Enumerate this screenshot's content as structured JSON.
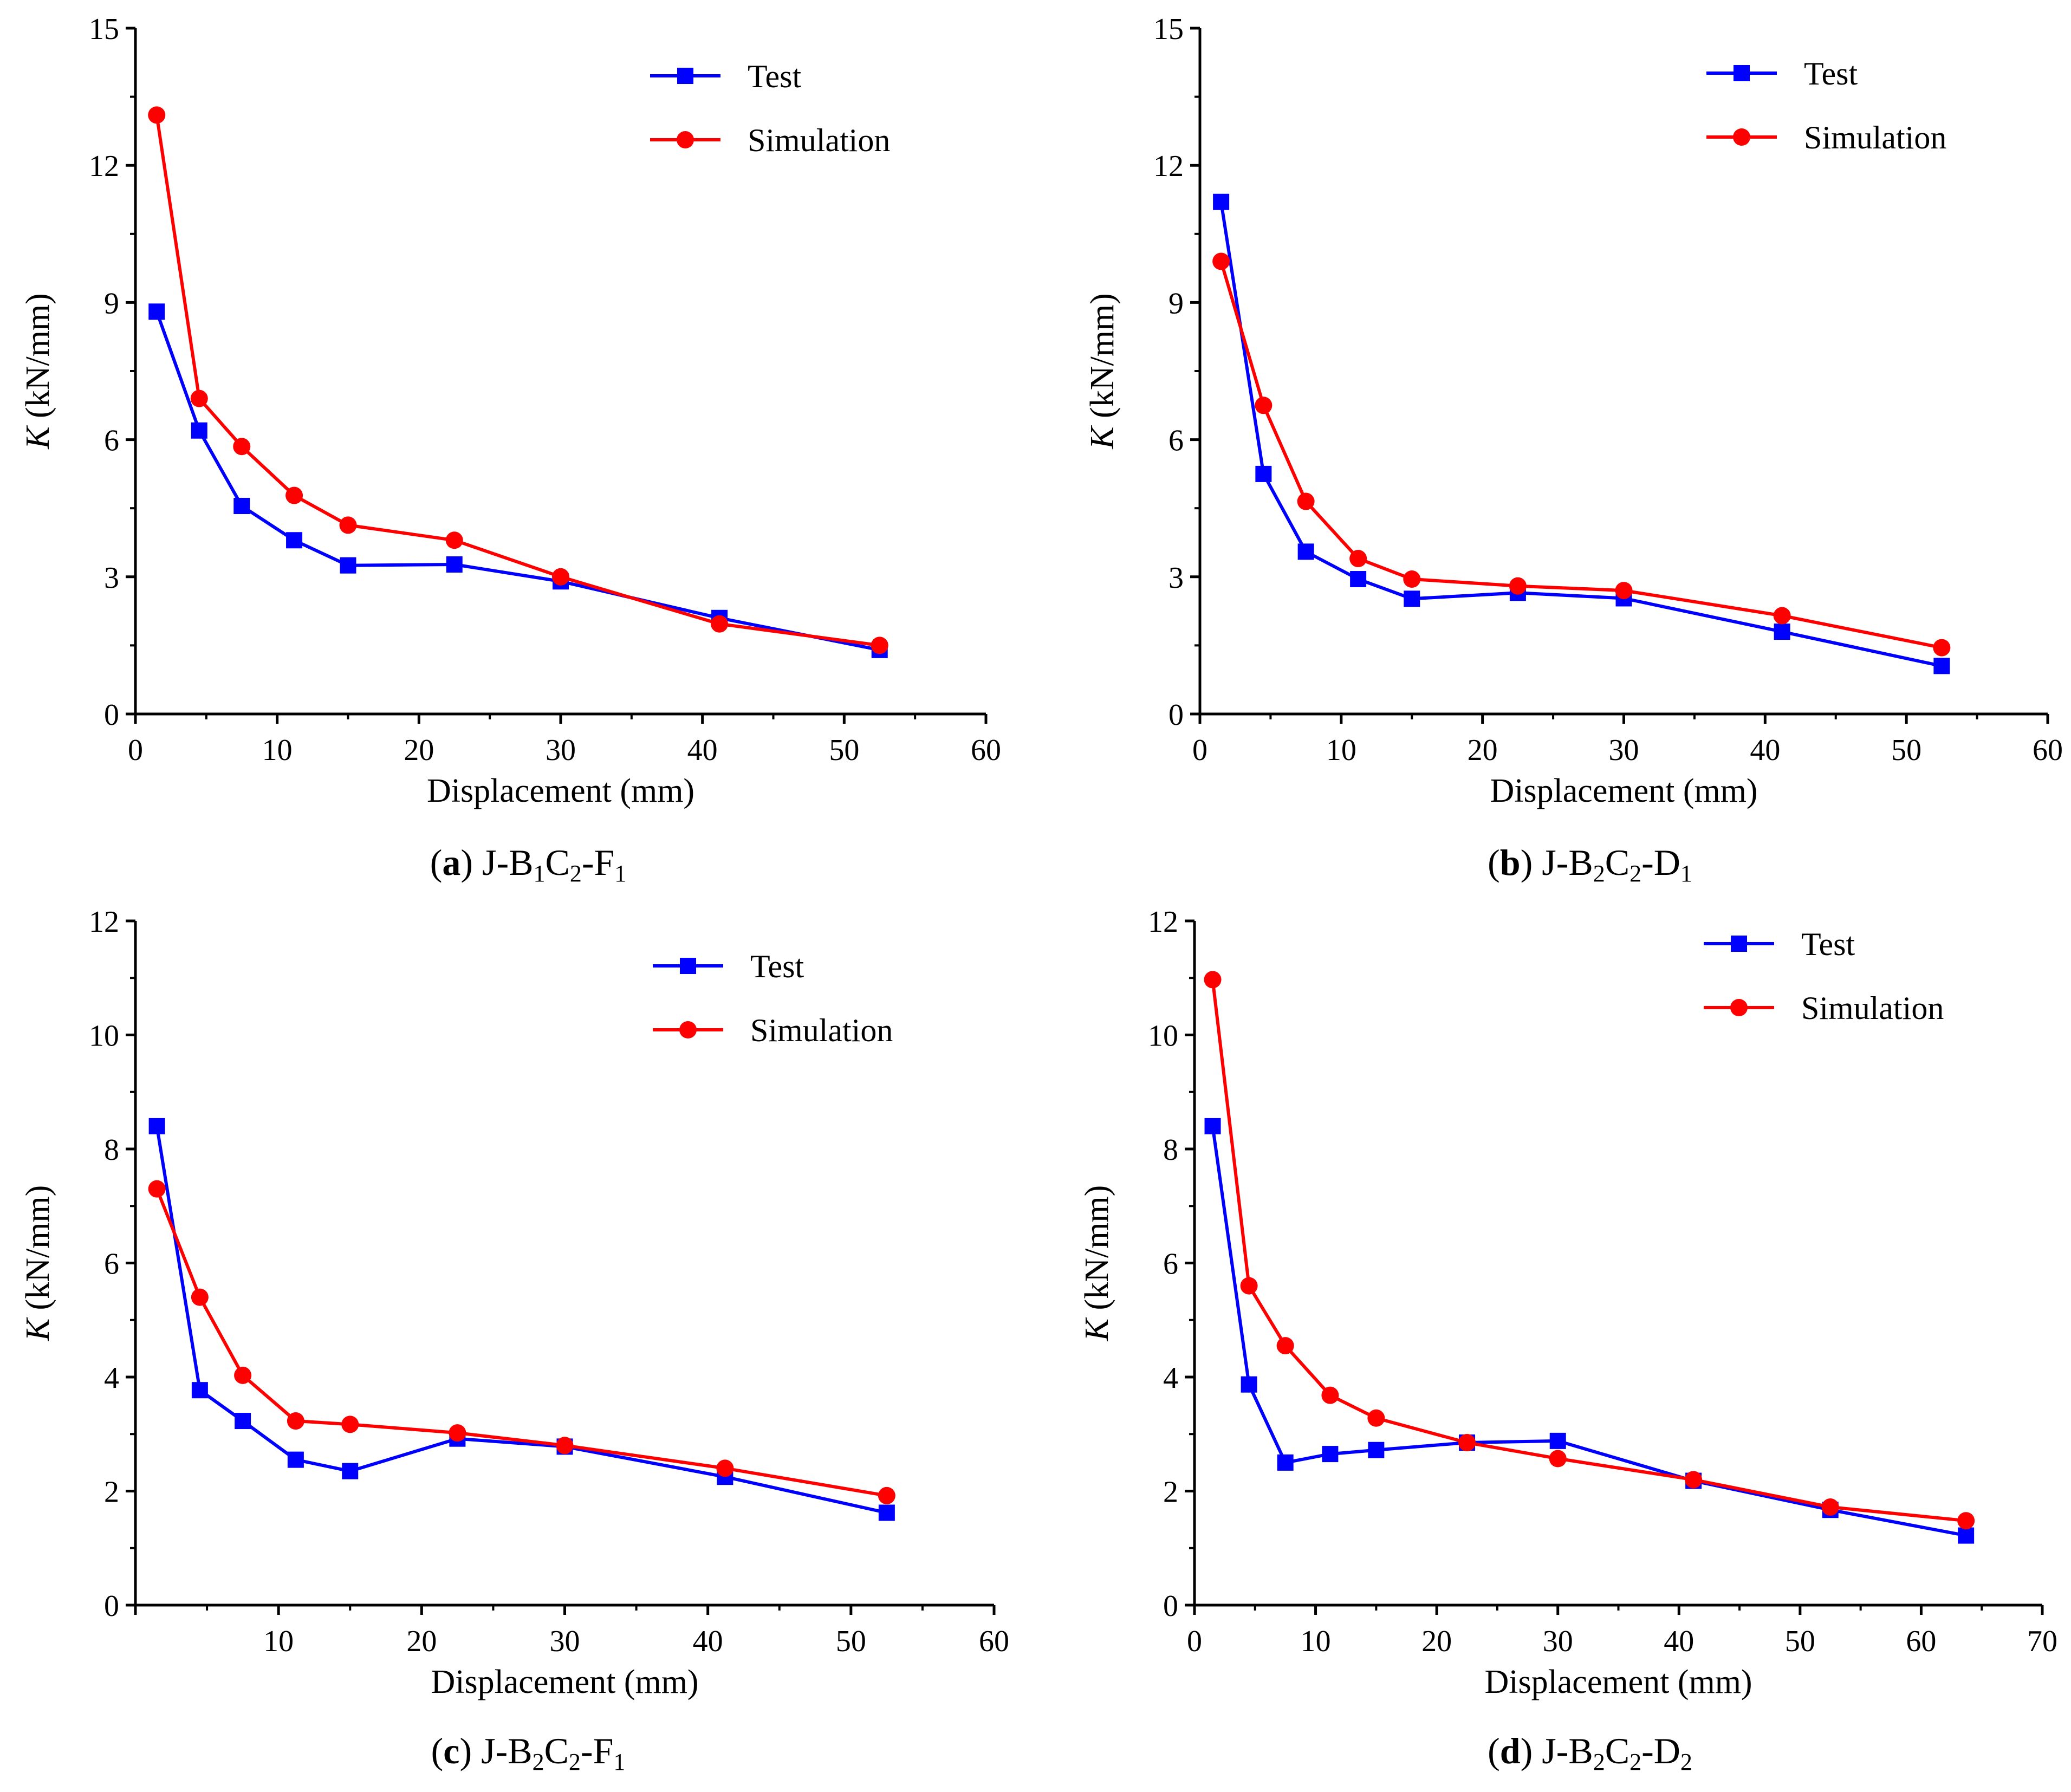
{
  "legend": {
    "test": "Test",
    "simulation": "Simulation"
  },
  "colors": {
    "test": "#0000ff",
    "simulation": "#ff0000",
    "axis": "#000000"
  },
  "chart_data": [
    {
      "type": "line",
      "panel_letter": "a",
      "caption": {
        "prefix": "(",
        "letter": "a",
        "close": ")",
        "specimen_parts": [
          "J-B",
          "1",
          "C",
          "2",
          "-F",
          "1"
        ]
      },
      "xlabel": "Displacement (mm)",
      "ylabel": {
        "symbol": "K",
        "unit": " (kN/mm)"
      },
      "xlim": [
        0,
        60
      ],
      "ylim": [
        0,
        15
      ],
      "xticks": [
        0,
        10,
        20,
        30,
        40,
        50,
        60
      ],
      "yticks": [
        0,
        3,
        6,
        9,
        12,
        15
      ],
      "xtick_labels": [
        "0",
        "10",
        "20",
        "30",
        "40",
        "50",
        "60"
      ],
      "ytick_labels": [
        "0",
        "3",
        "6",
        "9",
        "12",
        "15"
      ],
      "series": [
        {
          "name": "Test",
          "marker": "square",
          "x": [
            1.5,
            4.5,
            7.5,
            11.2,
            15.0,
            22.5,
            30.0,
            41.2,
            52.5
          ],
          "y": [
            8.8,
            6.2,
            4.55,
            3.8,
            3.25,
            3.27,
            2.9,
            2.1,
            1.4
          ]
        },
        {
          "name": "Simulation",
          "marker": "circle",
          "x": [
            1.5,
            4.5,
            7.5,
            11.2,
            15.0,
            22.5,
            30.0,
            41.2,
            52.5
          ],
          "y": [
            13.1,
            6.9,
            5.85,
            4.78,
            4.13,
            3.8,
            3.0,
            1.97,
            1.5
          ]
        }
      ]
    },
    {
      "type": "line",
      "panel_letter": "b",
      "caption": {
        "prefix": "(",
        "letter": "b",
        "close": ")",
        "specimen_parts": [
          "J-B",
          "2",
          "C",
          "2",
          "-D",
          "1"
        ]
      },
      "xlabel": "Displacement (mm)",
      "ylabel": {
        "symbol": "K",
        "unit": " (kN/mm)"
      },
      "xlim": [
        0,
        60
      ],
      "ylim": [
        0,
        15
      ],
      "xticks": [
        0,
        10,
        20,
        30,
        40,
        50,
        60
      ],
      "yticks": [
        0,
        3,
        6,
        9,
        12,
        15
      ],
      "xtick_labels": [
        "0",
        "10",
        "20",
        "30",
        "40",
        "50",
        "60"
      ],
      "ytick_labels": [
        "0",
        "3",
        "6",
        "9",
        "12",
        "15"
      ],
      "series": [
        {
          "name": "Test",
          "marker": "square",
          "x": [
            1.5,
            4.5,
            7.5,
            11.2,
            15.0,
            22.5,
            30.0,
            41.2,
            52.5
          ],
          "y": [
            11.2,
            5.25,
            3.55,
            2.95,
            2.52,
            2.65,
            2.53,
            1.8,
            1.05
          ]
        },
        {
          "name": "Simulation",
          "marker": "circle",
          "x": [
            1.5,
            4.5,
            7.5,
            11.2,
            15.0,
            22.5,
            30.0,
            41.2,
            52.5
          ],
          "y": [
            9.9,
            6.75,
            4.65,
            3.4,
            2.95,
            2.8,
            2.7,
            2.15,
            1.45
          ]
        }
      ]
    },
    {
      "type": "line",
      "panel_letter": "c",
      "caption": {
        "prefix": "(",
        "letter": "c",
        "close": ")",
        "specimen_parts": [
          "J-B",
          "2",
          "C",
          "2",
          "-F",
          "1"
        ]
      },
      "xlabel": "Displacement (mm)",
      "ylabel": {
        "symbol": "K",
        "unit": " (kN/mm)"
      },
      "xlim": [
        0,
        60
      ],
      "ylim": [
        0,
        12
      ],
      "xticks": [
        10,
        20,
        30,
        40,
        50,
        60
      ],
      "yticks": [
        0,
        2,
        4,
        6,
        8,
        10,
        12
      ],
      "xtick_labels": [
        "10",
        "20",
        "30",
        "40",
        "50",
        "60"
      ],
      "ytick_labels": [
        "0",
        "2",
        "4",
        "6",
        "8",
        "10",
        "12"
      ],
      "series": [
        {
          "name": "Test",
          "marker": "square",
          "x": [
            1.5,
            4.5,
            7.5,
            11.2,
            15.0,
            22.5,
            30.0,
            41.2,
            52.5
          ],
          "y": [
            8.4,
            3.77,
            3.23,
            2.55,
            2.35,
            2.92,
            2.78,
            2.25,
            1.62
          ]
        },
        {
          "name": "Simulation",
          "marker": "circle",
          "x": [
            1.5,
            4.5,
            7.5,
            11.2,
            15.0,
            22.5,
            30.0,
            41.2,
            52.5
          ],
          "y": [
            7.3,
            5.4,
            4.03,
            3.23,
            3.17,
            3.02,
            2.8,
            2.4,
            1.92
          ]
        }
      ]
    },
    {
      "type": "line",
      "panel_letter": "d",
      "caption": {
        "prefix": "(",
        "letter": "d",
        "close": ")",
        "specimen_parts": [
          "J-B",
          "2",
          "C",
          "2",
          "-D",
          "2"
        ]
      },
      "xlabel": "Displacement (mm)",
      "ylabel": {
        "symbol": "K",
        "unit": " (kN/mm)"
      },
      "xlim": [
        0,
        70
      ],
      "ylim": [
        0,
        12
      ],
      "xticks": [
        0,
        10,
        20,
        30,
        40,
        50,
        60,
        70
      ],
      "yticks": [
        0,
        2,
        4,
        6,
        8,
        10,
        12
      ],
      "xtick_labels": [
        "0",
        "10",
        "20",
        "30",
        "40",
        "50",
        "60",
        "70"
      ],
      "ytick_labels": [
        "0",
        "2",
        "4",
        "6",
        "8",
        "10",
        "12"
      ],
      "series": [
        {
          "name": "Test",
          "marker": "square",
          "x": [
            1.5,
            4.5,
            7.5,
            11.2,
            15.0,
            22.5,
            30.0,
            41.2,
            52.5,
            63.7
          ],
          "y": [
            8.4,
            3.87,
            2.5,
            2.65,
            2.72,
            2.85,
            2.88,
            2.18,
            1.67,
            1.22
          ]
        },
        {
          "name": "Simulation",
          "marker": "circle",
          "x": [
            1.5,
            4.5,
            7.5,
            11.2,
            15.0,
            22.5,
            30.0,
            41.2,
            52.5,
            63.7
          ],
          "y": [
            10.97,
            5.6,
            4.55,
            3.68,
            3.28,
            2.85,
            2.57,
            2.2,
            1.72,
            1.48
          ]
        }
      ]
    }
  ]
}
